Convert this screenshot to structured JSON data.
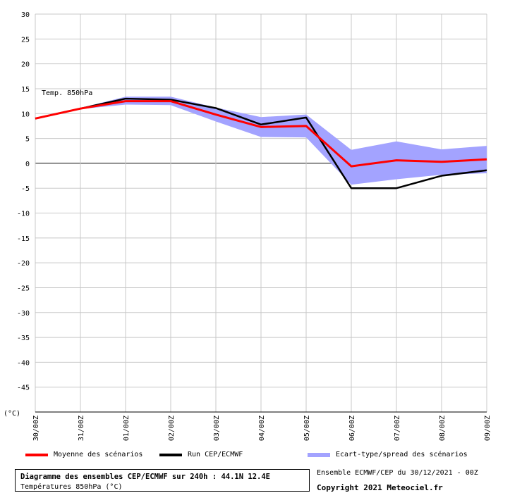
{
  "chart_data": {
    "type": "line",
    "annotation": "Temp. 850hPa",
    "unit_label": "(°C)",
    "ylim": [
      -50,
      30
    ],
    "yticks": [
      30,
      25,
      20,
      15,
      10,
      5,
      0,
      -5,
      -10,
      -15,
      -20,
      -25,
      -30,
      -35,
      -40,
      -45
    ],
    "x": [
      "30/00Z",
      "31/00Z",
      "01/00Z",
      "02/00Z",
      "03/00Z",
      "04/00Z",
      "05/00Z",
      "06/00Z",
      "07/00Z",
      "08/00Z",
      "09/00Z"
    ],
    "grid": true,
    "legend_position": "bottom",
    "series": [
      {
        "name": "Moyenne des scénarios",
        "color": "#ff0000",
        "values": [
          9.0,
          11.0,
          12.5,
          12.5,
          9.8,
          7.3,
          7.5,
          -0.6,
          0.6,
          0.3,
          0.8
        ]
      },
      {
        "name": "Run CEP/ECMWF",
        "color": "#000000",
        "values": [
          9.0,
          11.0,
          13.0,
          12.8,
          11.1,
          7.8,
          9.2,
          -5.0,
          -5.0,
          -2.5,
          -1.4
        ]
      }
    ],
    "spread": {
      "name": "Ecart-type/spread des scénarios",
      "color": "#a3a3ff",
      "upper": [
        9.1,
        11.1,
        13.4,
        13.4,
        11.2,
        9.3,
        9.8,
        2.7,
        4.4,
        2.8,
        3.5
      ],
      "lower": [
        8.9,
        10.9,
        11.8,
        11.7,
        8.4,
        5.3,
        5.2,
        -4.3,
        -3.2,
        -2.3,
        -2.0
      ]
    }
  },
  "legend": {
    "mean_label": "Moyenne des scénarios",
    "run_label": "Run CEP/ECMWF",
    "spread_label": "Ecart-type/spread des scénarios"
  },
  "footer": {
    "title": "Diagramme des ensembles CEP/ECMWF sur 240h : 44.1N 12.4E",
    "subtitle": "Températures 850hPa (°C)",
    "ensemble_info": "Ensemble ECMWF/CEP du 30/12/2021 - 00Z",
    "copyright": "Copyright 2021 Meteociel.fr"
  }
}
